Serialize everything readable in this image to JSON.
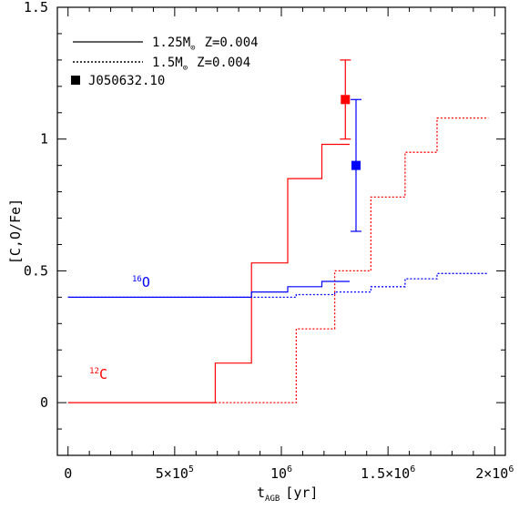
{
  "chart_data": {
    "type": "line",
    "title": "",
    "xlabel": "t",
    "xlabel_sub": "AGB",
    "xlabel_unit": "[yr]",
    "ylabel": "[C,O/Fe]",
    "xlim": [
      -50000,
      2050000
    ],
    "ylim": [
      -0.2,
      1.5
    ],
    "x_ticks": [
      {
        "value": 0,
        "mantissa": "0",
        "exp": ""
      },
      {
        "value": 500000,
        "mantissa": "5×10",
        "exp": "5"
      },
      {
        "value": 1000000,
        "mantissa": "10",
        "exp": "6"
      },
      {
        "value": 1500000,
        "mantissa": "1.5×10",
        "exp": "6"
      },
      {
        "value": 2000000,
        "mantissa": "2×10",
        "exp": "6"
      }
    ],
    "y_ticks": [
      {
        "value": 0,
        "label": "0"
      },
      {
        "value": 0.5,
        "label": "0.5"
      },
      {
        "value": 1,
        "label": "1"
      },
      {
        "value": 1.5,
        "label": "1.5"
      }
    ],
    "legend": [
      {
        "label": "1.25M",
        "sub": "⊙",
        "z": "Z=0.004",
        "style": "solid"
      },
      {
        "label": "1.5M",
        "sub": "⊙",
        "z": "Z=0.004",
        "style": "dotted"
      }
    ],
    "observation": {
      "name": "J050632.10",
      "points": [
        {
          "element": "C",
          "x": 1300000,
          "y": 1.15,
          "y_low": 1.0,
          "y_high": 1.3,
          "color": "#ff0000"
        },
        {
          "element": "O",
          "x": 1350000,
          "y": 0.9,
          "y_low": 0.65,
          "y_high": 1.15,
          "color": "#0000ff"
        }
      ]
    },
    "annotations": [
      {
        "mass": "12",
        "element": "C",
        "x": 100000,
        "y": 0.09,
        "color": "#ff0000"
      },
      {
        "mass": "16",
        "element": "O",
        "x": 300000,
        "y": 0.44,
        "color": "#0000ff"
      }
    ],
    "series": [
      {
        "element": "C",
        "model": "1.25",
        "style": "solid",
        "color": "#ff0000",
        "x": [
          0,
          690000,
          690000,
          860000,
          860000,
          1030000,
          1030000,
          1190000,
          1190000,
          1320000
        ],
        "y": [
          0,
          0,
          0.15,
          0.15,
          0.53,
          0.53,
          0.85,
          0.85,
          0.98,
          0.98
        ]
      },
      {
        "element": "C",
        "model": "1.5",
        "style": "dotted",
        "color": "#ff0000",
        "x": [
          690000,
          1070000,
          1070000,
          1250000,
          1250000,
          1420000,
          1420000,
          1580000,
          1580000,
          1730000,
          1730000,
          1970000
        ],
        "y": [
          0,
          0,
          0.28,
          0.28,
          0.5,
          0.5,
          0.78,
          0.78,
          0.95,
          0.95,
          1.08,
          1.08
        ]
      },
      {
        "element": "O",
        "model": "1.25",
        "style": "solid",
        "color": "#0000ff",
        "x": [
          0,
          860000,
          860000,
          1030000,
          1030000,
          1190000,
          1190000,
          1320000
        ],
        "y": [
          0.4,
          0.4,
          0.42,
          0.42,
          0.44,
          0.44,
          0.46,
          0.46
        ]
      },
      {
        "element": "O",
        "model": "1.5",
        "style": "dotted",
        "color": "#0000ff",
        "x": [
          0,
          1070000,
          1070000,
          1250000,
          1250000,
          1420000,
          1420000,
          1580000,
          1580000,
          1730000,
          1730000,
          1970000
        ],
        "y": [
          0.4,
          0.4,
          0.41,
          0.41,
          0.42,
          0.42,
          0.44,
          0.44,
          0.47,
          0.47,
          0.49,
          0.49
        ]
      }
    ]
  }
}
